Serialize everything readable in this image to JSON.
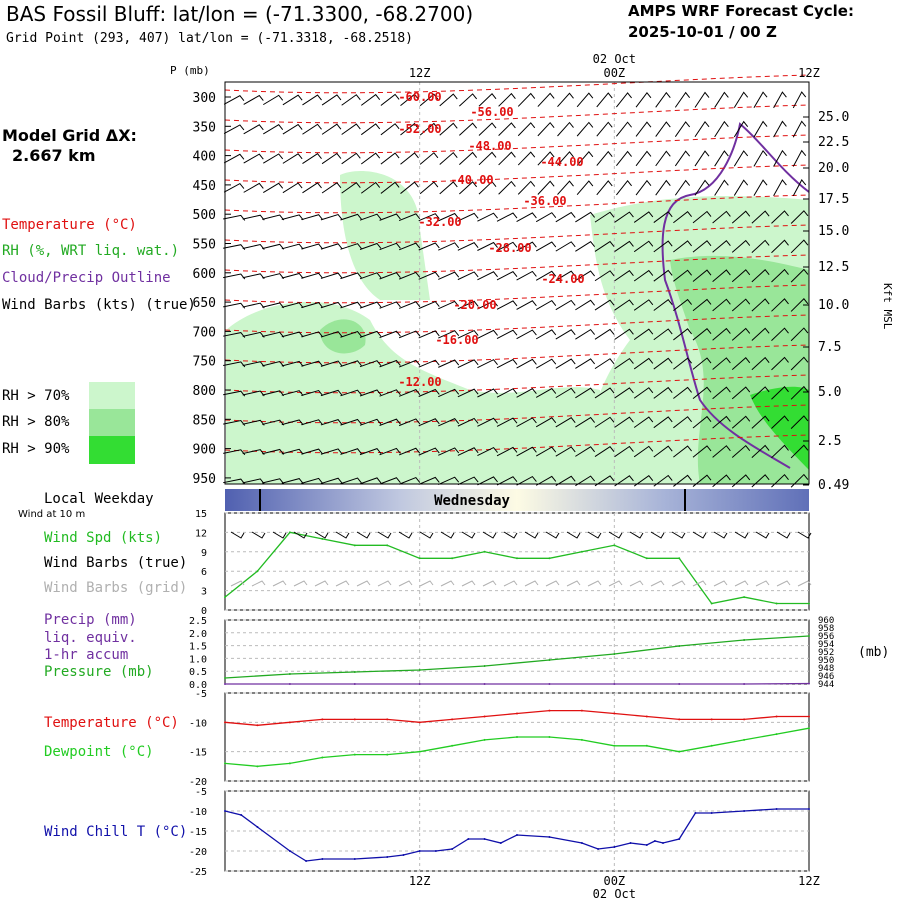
{
  "header": {
    "title": "BAS Fossil Bluff:  lat/lon = (-71.3300, -68.2700)",
    "subtitle": "Grid Point (293, 407) lat/lon = (-71.3318, -68.2518)",
    "cycle_line1": "AMPS WRF Forecast Cycle:",
    "cycle_line2": "2025-10-01 / 00  Z",
    "date_top": "02 Oct",
    "date_bottom": "02 Oct"
  },
  "time_ticks": [
    "12Z",
    "00Z",
    "12Z"
  ],
  "left_panel": {
    "model_grid_label": "Model Grid ΔX:",
    "model_grid_value": "2.667 km",
    "legend_temperature": "Temperature (°C)",
    "legend_rh": "RH (%, WRT liq. wat.)",
    "legend_cloud": "Cloud/Precip Outline",
    "legend_wind": "Wind Barbs (kts) (true)",
    "rh70": "RH > 70%",
    "rh80": "RH > 80%",
    "rh90": "RH > 90%",
    "local_weekday": "Local Weekday",
    "wind_10m": "Wind at 10 m"
  },
  "colors": {
    "temperature": "#e01010",
    "rh70": "#ccf6cc",
    "rh80": "#99e699",
    "rh90": "#33dd33",
    "cloud": "#7030a0",
    "wind_speed": "#22bb22",
    "wind_grid": "#b0b0b0",
    "precip": "#7030a0",
    "pressure": "#22aa22",
    "dewpoint": "#22cc22",
    "windchill": "#1010aa"
  },
  "cross_section": {
    "ylabel": "P (mb)",
    "right_label": "Kft MSL",
    "pressure_ticks": [
      "300",
      "350",
      "400",
      "450",
      "500",
      "550",
      "600",
      "650",
      "700",
      "750",
      "800",
      "850",
      "900",
      "950"
    ],
    "height_ticks": [
      "25.0",
      "22.5",
      "20.0",
      "17.5",
      "15.0",
      "12.5",
      "10.0",
      "7.5",
      "5.0",
      "2.5",
      "0.49"
    ],
    "temperature_labels": [
      "-60.00",
      "-56.00",
      "-52.00",
      "-48.00",
      "-44.00",
      "-40.00",
      "-36.00",
      "-32.00",
      "-28.00",
      "-24.00",
      "-20.00",
      "-16.00",
      "-12.00"
    ]
  },
  "weekday_bar": {
    "label": "Wednesday"
  },
  "panels": {
    "wind": {
      "labels": [
        "Wind Spd (kts)",
        "Wind Barbs (true)",
        "Wind Barbs (grid)"
      ],
      "yticks": [
        "15",
        "12",
        "9",
        "6",
        "3",
        "0"
      ]
    },
    "precip": {
      "labels": [
        "Precip (mm)",
        "liq. equiv.",
        "1-hr accum",
        "Pressure (mb)"
      ],
      "yticks": [
        "2.5",
        "2.0",
        "1.5",
        "1.0",
        "0.5",
        "0.0"
      ],
      "right_ticks": [
        "960",
        "958",
        "956",
        "954",
        "952",
        "950",
        "948",
        "946",
        "944"
      ],
      "right_unit": "(mb)"
    },
    "temp": {
      "labels": [
        "Temperature (°C)",
        "Dewpoint (°C)"
      ],
      "yticks": [
        "-5",
        "-10",
        "-15",
        "-20"
      ]
    },
    "chill": {
      "labels": [
        "Wind Chill T (°C)"
      ],
      "yticks": [
        "-5",
        "-10",
        "-15",
        "-20",
        "-25"
      ]
    }
  },
  "chart_data": [
    {
      "type": "line",
      "panel": "wind",
      "x_unit": "forecast hour",
      "x": [
        0,
        2,
        4,
        6,
        8,
        10,
        12,
        14,
        16,
        18,
        20,
        22,
        24,
        26,
        28,
        30,
        32,
        34,
        36
      ],
      "series": [
        {
          "name": "Wind Spd (kts)",
          "values": [
            2,
            6,
            12,
            11,
            10,
            10,
            8,
            8,
            9,
            8,
            8,
            9,
            10,
            8,
            8,
            1,
            2,
            1,
            1
          ]
        }
      ],
      "ylim": [
        0,
        15
      ]
    },
    {
      "type": "line",
      "panel": "precip",
      "x": [
        0,
        4,
        8,
        12,
        16,
        20,
        24,
        28,
        32,
        36
      ],
      "series": [
        {
          "name": "Pressure (mb)",
          "values": [
            945.5,
            946.5,
            947,
            947.5,
            948.5,
            950,
            951.5,
            953.5,
            955,
            956
          ]
        },
        {
          "name": "Precip (mm)",
          "values": [
            0,
            0,
            0,
            0,
            0,
            0,
            0,
            0,
            0,
            0.02
          ]
        }
      ],
      "ylim": [
        0,
        2.5
      ],
      "y2lim": [
        944,
        960
      ]
    },
    {
      "type": "line",
      "panel": "temp",
      "x": [
        0,
        2,
        4,
        6,
        8,
        10,
        12,
        14,
        16,
        18,
        20,
        22,
        24,
        26,
        28,
        30,
        32,
        34,
        36
      ],
      "series": [
        {
          "name": "Temperature (°C)",
          "values": [
            -10,
            -10.5,
            -10,
            -9.5,
            -9.5,
            -9.5,
            -10,
            -9.5,
            -9,
            -8.5,
            -8,
            -8,
            -8.5,
            -9,
            -9.5,
            -9.5,
            -9.5,
            -9,
            -9
          ]
        },
        {
          "name": "Dewpoint (°C)",
          "values": [
            -17,
            -17.5,
            -17,
            -16,
            -15.5,
            -15.5,
            -15,
            -14,
            -13,
            -12.5,
            -12.5,
            -13,
            -14,
            -14,
            -15,
            -14,
            -13,
            -12,
            -11
          ]
        }
      ],
      "ylim": [
        -20,
        -5
      ]
    },
    {
      "type": "line",
      "panel": "chill",
      "x": [
        0,
        1,
        2,
        4,
        5,
        6,
        8,
        10,
        11,
        12,
        13,
        14,
        15,
        16,
        17,
        18,
        20,
        22,
        23,
        24,
        25,
        26,
        26.5,
        27,
        28,
        29,
        30,
        32,
        34,
        36
      ],
      "series": [
        {
          "name": "Wind Chill T (°C)",
          "values": [
            -10,
            -11,
            -14,
            -20,
            -22.5,
            -22,
            -22,
            -21.5,
            -21,
            -20,
            -20,
            -19.5,
            -17,
            -17,
            -18,
            -16,
            -16.5,
            -18,
            -19.5,
            -19,
            -18,
            -18.5,
            -17.5,
            -18,
            -17,
            -10.5,
            -10.5,
            -10,
            -9.5,
            -9.5
          ]
        }
      ],
      "ylim": [
        -25,
        -5
      ]
    }
  ]
}
